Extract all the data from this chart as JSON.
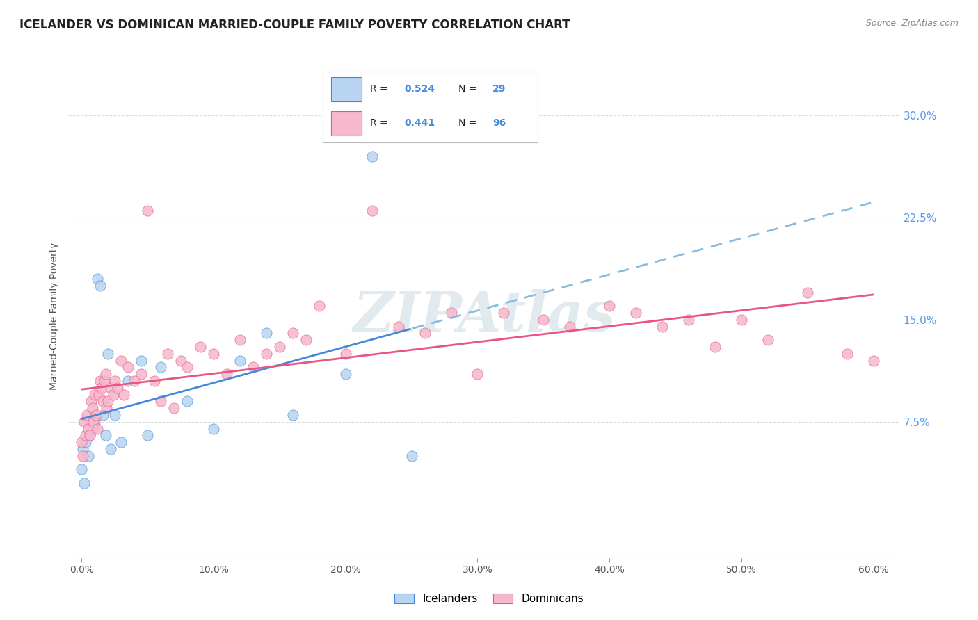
{
  "title": "ICELANDER VS DOMINICAN MARRIED-COUPLE FAMILY POVERTY CORRELATION CHART",
  "source": "Source: ZipAtlas.com",
  "xlabel_ticks": [
    "0.0%",
    "10.0%",
    "20.0%",
    "30.0%",
    "40.0%",
    "50.0%",
    "60.0%"
  ],
  "xlabel_vals": [
    0.0,
    10.0,
    20.0,
    30.0,
    40.0,
    50.0,
    60.0
  ],
  "ylabel_ticks": [
    "7.5%",
    "15.0%",
    "22.5%",
    "30.0%"
  ],
  "ylabel_vals": [
    7.5,
    15.0,
    22.5,
    30.0
  ],
  "xlim": [
    -1.0,
    62.0
  ],
  "ylim": [
    -2.5,
    33.0
  ],
  "watermark": "ZIPAtlas",
  "icelander_color": "#b8d4f0",
  "dominican_color": "#f5b8cc",
  "line1_color": "#4488dd",
  "line2_color": "#e85580",
  "line1_dashed_color": "#88bbdd",
  "background_color": "#ffffff",
  "grid_color": "#dddddd",
  "ytick_color": "#5599ee",
  "xtick_color": "#555555",
  "ylabel_text": "Married-Couple Family Poverty",
  "icel_x": [
    0.0,
    0.1,
    0.2,
    0.3,
    0.5,
    0.6,
    0.7,
    0.8,
    1.0,
    1.2,
    1.4,
    1.6,
    1.8,
    2.0,
    2.2,
    2.5,
    3.0,
    3.5,
    4.5,
    5.0,
    6.0,
    8.0,
    10.0,
    12.0,
    14.0,
    16.0,
    20.0,
    22.0,
    25.0
  ],
  "icel_y": [
    4.0,
    5.5,
    3.0,
    6.0,
    5.0,
    6.5,
    7.5,
    7.0,
    7.5,
    18.0,
    17.5,
    8.0,
    6.5,
    12.5,
    5.5,
    8.0,
    6.0,
    10.5,
    12.0,
    6.5,
    11.5,
    9.0,
    7.0,
    12.0,
    14.0,
    8.0,
    11.0,
    27.0,
    5.0
  ],
  "dom_x": [
    0.0,
    0.1,
    0.2,
    0.3,
    0.4,
    0.5,
    0.6,
    0.7,
    0.8,
    0.9,
    1.0,
    1.1,
    1.2,
    1.3,
    1.4,
    1.5,
    1.6,
    1.7,
    1.8,
    1.9,
    2.0,
    2.2,
    2.4,
    2.5,
    2.7,
    3.0,
    3.2,
    3.5,
    4.0,
    4.5,
    5.0,
    5.5,
    6.0,
    6.5,
    7.0,
    7.5,
    8.0,
    9.0,
    10.0,
    11.0,
    12.0,
    13.0,
    14.0,
    15.0,
    16.0,
    17.0,
    18.0,
    20.0,
    22.0,
    24.0,
    26.0,
    28.0,
    30.0,
    32.0,
    35.0,
    37.0,
    40.0,
    42.0,
    44.0,
    46.0,
    48.0,
    50.0,
    52.0,
    55.0,
    58.0,
    60.0
  ],
  "dom_y": [
    6.0,
    5.0,
    7.5,
    6.5,
    8.0,
    7.0,
    6.5,
    9.0,
    8.5,
    7.5,
    9.5,
    8.0,
    7.0,
    9.5,
    10.5,
    10.0,
    9.0,
    10.5,
    11.0,
    8.5,
    9.0,
    10.0,
    9.5,
    10.5,
    10.0,
    12.0,
    9.5,
    11.5,
    10.5,
    11.0,
    23.0,
    10.5,
    9.0,
    12.5,
    8.5,
    12.0,
    11.5,
    13.0,
    12.5,
    11.0,
    13.5,
    11.5,
    12.5,
    13.0,
    14.0,
    13.5,
    16.0,
    12.5,
    23.0,
    14.5,
    14.0,
    15.5,
    11.0,
    15.5,
    15.0,
    14.5,
    16.0,
    15.5,
    14.5,
    15.0,
    13.0,
    15.0,
    13.5,
    17.0,
    12.5,
    12.0
  ]
}
